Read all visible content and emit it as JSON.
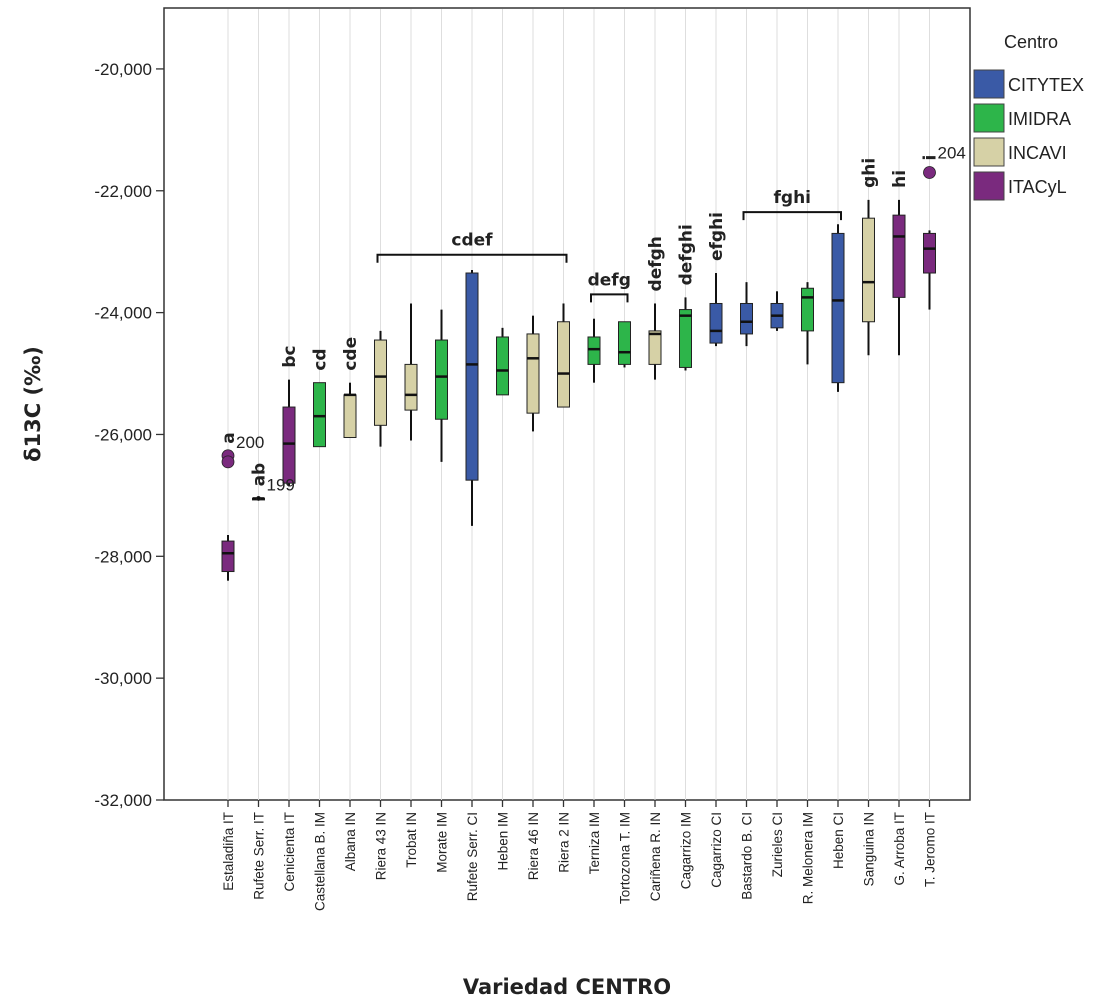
{
  "chart_data": {
    "type": "boxplot",
    "title": "",
    "xlabel": "Variedad CENTRO",
    "ylabel": "δ13C (‰)",
    "ylim": [
      -32,
      -19
    ],
    "yticks": [
      {
        "value": -20,
        "label": "-20,000"
      },
      {
        "value": -22,
        "label": "-22,000"
      },
      {
        "value": -24,
        "label": "-24,000"
      },
      {
        "value": -26,
        "label": "-26,000"
      },
      {
        "value": -28,
        "label": "-28,000"
      },
      {
        "value": -30,
        "label": "-30,000"
      },
      {
        "value": -32,
        "label": "-32,000"
      }
    ],
    "grid": "vertical",
    "legend": {
      "title": "Centro",
      "placement": "right",
      "entries": [
        {
          "name": "CITYTEX",
          "color": "#3a5aa6"
        },
        {
          "name": "IMIDRA",
          "color": "#2db54a"
        },
        {
          "name": "INCAVI",
          "color": "#d6d1a6"
        },
        {
          "name": "ITACyL",
          "color": "#7a2a7e"
        }
      ]
    },
    "categories": [
      {
        "label": "Estaladiña IT",
        "centro": "ITACyL",
        "min": -28.4,
        "q1": -28.25,
        "median": -27.95,
        "q3": -27.75,
        "max": -27.65,
        "letters": "a"
      },
      {
        "label": "Rufete Serr. IT",
        "centro": "ITACyL",
        "min": -27.05,
        "q1": -27.05,
        "median": -27.05,
        "q3": -27.05,
        "max": -27.05,
        "letters": "ab"
      },
      {
        "label": "Cenicienta IT",
        "centro": "ITACyL",
        "min": -26.85,
        "q1": -26.8,
        "median": -26.15,
        "q3": -25.55,
        "max": -25.1,
        "letters": "bc"
      },
      {
        "label": "Castellana B. IM",
        "centro": "IMIDRA",
        "min": -26.2,
        "q1": -26.2,
        "median": -25.7,
        "q3": -25.15,
        "max": -25.15,
        "letters": "cd"
      },
      {
        "label": "Albana IN",
        "centro": "INCAVI",
        "min": -26.05,
        "q1": -26.05,
        "median": -25.35,
        "q3": -25.35,
        "max": -25.15,
        "letters": "cde"
      },
      {
        "label": "Riera 43 IN",
        "centro": "INCAVI",
        "min": -26.2,
        "q1": -25.85,
        "median": -25.05,
        "q3": -24.45,
        "max": -24.3,
        "letters": ""
      },
      {
        "label": "Trobat IN",
        "centro": "INCAVI",
        "min": -26.1,
        "q1": -25.6,
        "median": -25.35,
        "q3": -24.85,
        "max": -23.85,
        "letters": ""
      },
      {
        "label": "Morate IM",
        "centro": "IMIDRA",
        "min": -26.45,
        "q1": -25.75,
        "median": -25.05,
        "q3": -24.45,
        "max": -23.95,
        "letters": ""
      },
      {
        "label": "Rufete Serr. CI",
        "centro": "CITYTEX",
        "min": -27.5,
        "q1": -26.75,
        "median": -24.85,
        "q3": -23.35,
        "max": -23.3,
        "letters": ""
      },
      {
        "label": "Heben IM",
        "centro": "IMIDRA",
        "min": -25.35,
        "q1": -25.35,
        "median": -24.95,
        "q3": -24.4,
        "max": -24.25,
        "letters": ""
      },
      {
        "label": "Riera 46 IN",
        "centro": "INCAVI",
        "min": -25.95,
        "q1": -25.65,
        "median": -24.75,
        "q3": -24.35,
        "max": -24.05,
        "letters": ""
      },
      {
        "label": "Riera 2 IN",
        "centro": "INCAVI",
        "min": -25.55,
        "q1": -25.55,
        "median": -25.0,
        "q3": -24.15,
        "max": -23.85,
        "letters": ""
      },
      {
        "label": "Terniza IM",
        "centro": "IMIDRA",
        "min": -25.15,
        "q1": -24.85,
        "median": -24.6,
        "q3": -24.4,
        "max": -24.1,
        "letters": ""
      },
      {
        "label": "Tortozona T. IM",
        "centro": "IMIDRA",
        "min": -24.9,
        "q1": -24.85,
        "median": -24.65,
        "q3": -24.15,
        "max": -24.15,
        "letters": ""
      },
      {
        "label": "Cariñena R. IN",
        "centro": "INCAVI",
        "min": -25.1,
        "q1": -24.85,
        "median": -24.35,
        "q3": -24.3,
        "max": -23.85,
        "letters": "defgh"
      },
      {
        "label": "Cagarrizo IM",
        "centro": "IMIDRA",
        "min": -24.95,
        "q1": -24.9,
        "median": -24.05,
        "q3": -23.95,
        "max": -23.75,
        "letters": "defghi"
      },
      {
        "label": "Cagarrizo CI",
        "centro": "CITYTEX",
        "min": -24.55,
        "q1": -24.5,
        "median": -24.3,
        "q3": -23.85,
        "max": -23.35,
        "letters": "efghi"
      },
      {
        "label": "Bastardo B. CI",
        "centro": "CITYTEX",
        "min": -24.55,
        "q1": -24.35,
        "median": -24.15,
        "q3": -23.85,
        "max": -23.5,
        "letters": ""
      },
      {
        "label": "Zurieles CI",
        "centro": "CITYTEX",
        "min": -24.3,
        "q1": -24.25,
        "median": -24.05,
        "q3": -23.85,
        "max": -23.65,
        "letters": ""
      },
      {
        "label": "R. Melonera IM",
        "centro": "IMIDRA",
        "min": -24.85,
        "q1": -24.3,
        "median": -23.75,
        "q3": -23.6,
        "max": -23.5,
        "letters": ""
      },
      {
        "label": "Heben CI",
        "centro": "CITYTEX",
        "min": -25.3,
        "q1": -25.15,
        "median": -23.8,
        "q3": -22.7,
        "max": -22.55,
        "letters": ""
      },
      {
        "label": "Sanguina IN",
        "centro": "INCAVI",
        "min": -24.7,
        "q1": -24.15,
        "median": -23.5,
        "q3": -22.45,
        "max": -22.15,
        "letters": "ghi"
      },
      {
        "label": "G. Arroba IT",
        "centro": "ITACyL",
        "min": -24.7,
        "q1": -23.75,
        "median": -22.75,
        "q3": -22.4,
        "max": -22.15,
        "letters": "hi"
      },
      {
        "label": "T. Jeromo IT",
        "centro": "ITACyL",
        "min": -23.95,
        "q1": -23.35,
        "median": -22.95,
        "q3": -22.7,
        "max": -22.65,
        "letters": "i"
      }
    ],
    "outliers": [
      {
        "category": 0,
        "value": -26.35,
        "label": "",
        "filled": true
      },
      {
        "category": 0,
        "value": -26.45,
        "label": "200",
        "filled": true
      },
      {
        "category": 1,
        "value": -27.05,
        "label": "199",
        "filled": true
      },
      {
        "category": 23,
        "value": -21.7,
        "label": "204",
        "filled": true
      }
    ],
    "brackets": [
      {
        "from": 5,
        "to": 11,
        "label": "cdef",
        "value": -23.05
      },
      {
        "from": 12,
        "to": 13,
        "label": "defg",
        "value": -23.7
      },
      {
        "from": 17,
        "to": 20,
        "label": "fghi",
        "value": -22.35
      }
    ]
  }
}
